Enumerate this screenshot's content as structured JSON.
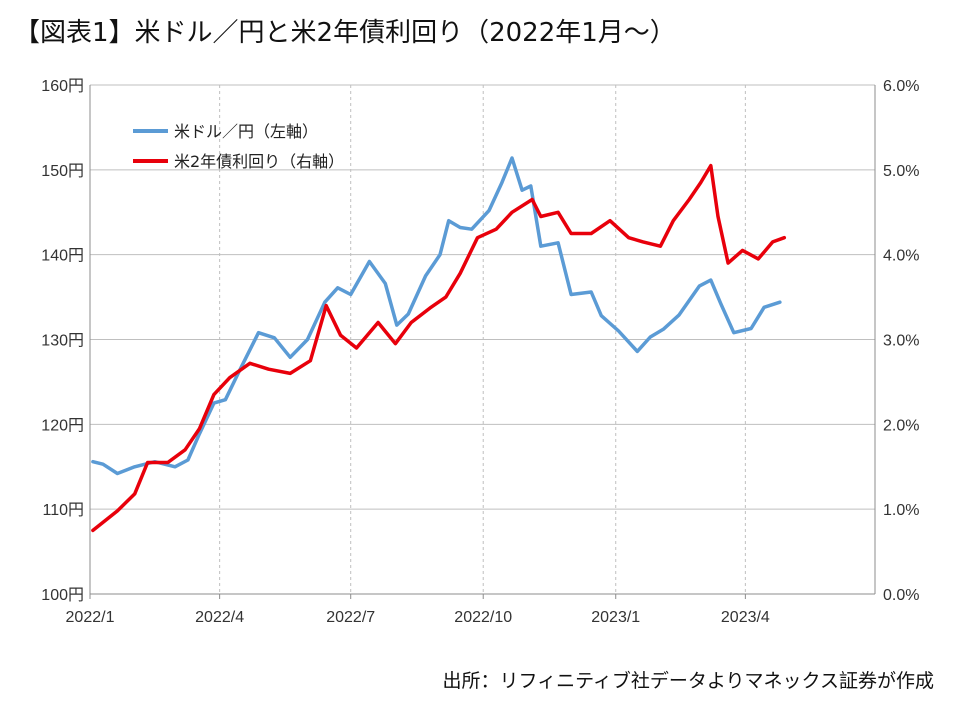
{
  "title": "【図表1】米ドル／円と米2年債利回り（2022年1月～）",
  "source": "出所：リフィニティブ社データよりマネックス証券が作成",
  "colors": {
    "usdjpy": "#5b9bd5",
    "yield": "#e8000b",
    "grid": "#bfbfbf",
    "axis": "#8c8c8c"
  },
  "chart_data": {
    "type": "line",
    "title": "",
    "xlabel": "",
    "ylabel": "",
    "x_tick_labels": [
      "2022/1",
      "2022/4",
      "2022/7",
      "2022/10",
      "2023/1",
      "2023/4"
    ],
    "y_left_ticks": [
      "100円",
      "110円",
      "120円",
      "130円",
      "140円",
      "150円",
      "160円"
    ],
    "y_right_ticks": [
      "0.0%",
      "1.0%",
      "2.0%",
      "3.0%",
      "4.0%",
      "5.0%",
      "6.0%"
    ],
    "ylim_left": [
      100,
      160
    ],
    "ylim_right": [
      0,
      6
    ],
    "xlim": [
      "2022-01-01",
      "2023-06-30"
    ],
    "grid": true,
    "legend_position": "top-left",
    "series": [
      {
        "name": "米ドル／円（左軸）",
        "axis": "left",
        "color": "#5b9bd5",
        "x": [
          "2022-01-03",
          "2022-01-10",
          "2022-01-20",
          "2022-02-01",
          "2022-02-15",
          "2022-03-01",
          "2022-03-10",
          "2022-03-18",
          "2022-03-28",
          "2022-04-05",
          "2022-04-15",
          "2022-04-28",
          "2022-05-09",
          "2022-05-20",
          "2022-06-01",
          "2022-06-13",
          "2022-06-22",
          "2022-07-01",
          "2022-07-14",
          "2022-07-25",
          "2022-08-02",
          "2022-08-10",
          "2022-08-22",
          "2022-09-01",
          "2022-09-07",
          "2022-09-15",
          "2022-09-23",
          "2022-10-05",
          "2022-10-14",
          "2022-10-21",
          "2022-10-28",
          "2022-11-03",
          "2022-11-10",
          "2022-11-22",
          "2022-12-01",
          "2022-12-15",
          "2022-12-22",
          "2023-01-03",
          "2023-01-16",
          "2023-01-25",
          "2023-02-03",
          "2023-02-14",
          "2023-02-28",
          "2023-03-08",
          "2023-03-15",
          "2023-03-24",
          "2023-04-05",
          "2023-04-14",
          "2023-04-25"
        ],
        "values": [
          115.6,
          115.3,
          114.2,
          115.0,
          115.6,
          115.0,
          115.8,
          118.9,
          122.5,
          122.9,
          126.4,
          130.8,
          130.2,
          127.9,
          130.0,
          134.4,
          136.1,
          135.3,
          139.2,
          136.6,
          131.7,
          133.0,
          137.5,
          140.0,
          144.0,
          143.2,
          143.0,
          145.2,
          148.5,
          151.4,
          147.6,
          148.1,
          141.0,
          141.4,
          135.3,
          135.6,
          132.8,
          131.0,
          128.6,
          130.3,
          131.2,
          132.9,
          136.3,
          137.0,
          134.2,
          130.8,
          131.3,
          133.8,
          134.4
        ]
      },
      {
        "name": "米2年債利回り（右軸）",
        "axis": "right",
        "color": "#e8000b",
        "x": [
          "2022-01-03",
          "2022-01-20",
          "2022-02-01",
          "2022-02-10",
          "2022-02-24",
          "2022-03-08",
          "2022-03-18",
          "2022-03-28",
          "2022-04-08",
          "2022-04-22",
          "2022-05-05",
          "2022-05-20",
          "2022-06-03",
          "2022-06-14",
          "2022-06-24",
          "2022-07-05",
          "2022-07-20",
          "2022-08-01",
          "2022-08-12",
          "2022-08-25",
          "2022-09-05",
          "2022-09-15",
          "2022-09-27",
          "2022-10-10",
          "2022-10-21",
          "2022-11-04",
          "2022-11-10",
          "2022-11-22",
          "2022-12-01",
          "2022-12-15",
          "2022-12-28",
          "2023-01-10",
          "2023-01-20",
          "2023-02-01",
          "2023-02-10",
          "2023-02-21",
          "2023-03-01",
          "2023-03-08",
          "2023-03-13",
          "2023-03-20",
          "2023-03-30",
          "2023-04-10",
          "2023-04-20",
          "2023-04-28"
        ],
        "values": [
          0.75,
          0.98,
          1.18,
          1.55,
          1.55,
          1.7,
          1.95,
          2.35,
          2.55,
          2.72,
          2.65,
          2.6,
          2.75,
          3.4,
          3.05,
          2.9,
          3.2,
          2.95,
          3.2,
          3.37,
          3.5,
          3.78,
          4.2,
          4.3,
          4.5,
          4.65,
          4.45,
          4.5,
          4.25,
          4.25,
          4.4,
          4.2,
          4.15,
          4.1,
          4.4,
          4.65,
          4.85,
          5.05,
          4.45,
          3.9,
          4.05,
          3.95,
          4.15,
          4.2
        ]
      }
    ]
  }
}
